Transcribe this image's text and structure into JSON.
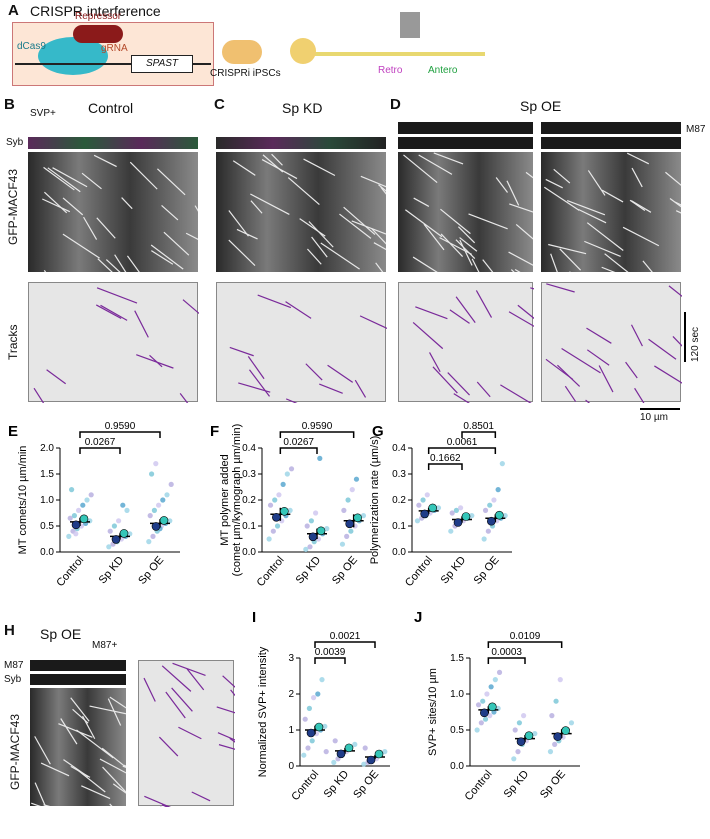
{
  "panelA": {
    "label": "A",
    "title": "CRISPR interference",
    "dcas9": "dCas9",
    "repressor": "Repressor",
    "grna": "gRNA",
    "gene": "SPAST",
    "ipsc": "CRISPRi iPSCs",
    "retro": "Retro",
    "antero": "Antero"
  },
  "kymo": {
    "labelB": "B",
    "labelC": "C",
    "labelD": "D",
    "control": "Control",
    "spkd": "Sp KD",
    "spoe": "Sp OE",
    "svp": "SVP+",
    "syb": "Syb",
    "gfp": "GFP-MACF43",
    "tracks": "Tracks",
    "m87": "M87",
    "scale_time": "120 sec",
    "scale_space": "10 µm"
  },
  "panelH": {
    "label": "H",
    "title": "Sp OE",
    "m87plus": "M87+",
    "m87": "M87",
    "syb": "Syb",
    "gfp": "GFP-MACF43"
  },
  "chart_data": [
    {
      "panel": "E",
      "type": "scatter",
      "ylabel": "MT comets/10 µm/min",
      "categories": [
        "Control",
        "Sp KD",
        "Sp OE"
      ],
      "ylim": [
        0,
        2.0
      ],
      "yticks": [
        "0.0",
        "0.5",
        "1.0",
        "1.5",
        "2.0"
      ],
      "means": [
        0.58,
        0.3,
        0.55
      ],
      "sem": [
        0.08,
        0.06,
        0.08
      ],
      "points": [
        [
          0.3,
          0.4,
          0.45,
          0.5,
          0.55,
          0.6,
          0.65,
          0.7,
          0.8,
          0.9,
          1.0,
          1.1,
          1.2,
          0.35
        ],
        [
          0.1,
          0.15,
          0.2,
          0.25,
          0.3,
          0.35,
          0.4,
          0.5,
          0.6,
          0.9,
          0.8
        ],
        [
          0.2,
          0.3,
          0.4,
          0.5,
          0.55,
          0.6,
          0.7,
          0.8,
          0.9,
          1.0,
          1.1,
          1.3,
          1.5,
          1.7,
          0.45
        ]
      ],
      "comparisons": [
        {
          "from": 0,
          "to": 1,
          "p": "0.0267"
        },
        {
          "from": 0,
          "to": 2,
          "p": "0.9590"
        }
      ]
    },
    {
      "panel": "F",
      "type": "scatter",
      "ylabel": "MT polymer added\n(comet µm/kymograph µm/min)",
      "categories": [
        "Control",
        "Sp KD",
        "Sp OE"
      ],
      "ylim": [
        0,
        0.4
      ],
      "yticks": [
        "0.0",
        "0.1",
        "0.2",
        "0.3",
        "0.4"
      ],
      "means": [
        0.145,
        0.07,
        0.12
      ],
      "sem": [
        0.025,
        0.02,
        0.025
      ],
      "points": [
        [
          0.05,
          0.08,
          0.1,
          0.12,
          0.14,
          0.16,
          0.18,
          0.2,
          0.22,
          0.26,
          0.3,
          0.32
        ],
        [
          0.01,
          0.02,
          0.04,
          0.05,
          0.07,
          0.09,
          0.1,
          0.12,
          0.15,
          0.36
        ],
        [
          0.03,
          0.06,
          0.08,
          0.1,
          0.12,
          0.14,
          0.16,
          0.2,
          0.24,
          0.28
        ]
      ],
      "comparisons": [
        {
          "from": 0,
          "to": 1,
          "p": "0.0267"
        },
        {
          "from": 0,
          "to": 2,
          "p": "0.9590"
        }
      ]
    },
    {
      "panel": "G",
      "type": "scatter",
      "ylabel": "Polymerization rate (µm/s)",
      "categories": [
        "Control",
        "Sp KD",
        "Sp OE"
      ],
      "ylim": [
        0,
        0.4
      ],
      "yticks": [
        "0.0",
        "0.1",
        "0.2",
        "0.3",
        "0.4"
      ],
      "means": [
        0.158,
        0.125,
        0.13
      ],
      "sem": [
        0.012,
        0.012,
        0.015
      ],
      "points": [
        [
          0.12,
          0.13,
          0.14,
          0.15,
          0.16,
          0.17,
          0.18,
          0.2,
          0.22
        ],
        [
          0.08,
          0.1,
          0.11,
          0.12,
          0.13,
          0.14,
          0.15,
          0.16,
          0.17
        ],
        [
          0.05,
          0.08,
          0.1,
          0.12,
          0.13,
          0.14,
          0.16,
          0.18,
          0.2,
          0.24,
          0.34
        ]
      ],
      "comparisons": [
        {
          "from": 0,
          "to": 1,
          "p": "0.1662"
        },
        {
          "from": 0,
          "to": 2,
          "p": "0.0061"
        },
        {
          "from": 1,
          "to": 2,
          "p": "0.8501"
        }
      ]
    },
    {
      "panel": "I",
      "type": "scatter",
      "ylabel": "Normalized SVP+ intensity",
      "categories": [
        "Control",
        "Sp KD",
        "Sp OE"
      ],
      "ylim": [
        0,
        3
      ],
      "yticks": [
        "0",
        "1",
        "2",
        "3"
      ],
      "means": [
        1.0,
        0.42,
        0.25
      ],
      "sem": [
        0.12,
        0.08,
        0.06
      ],
      "points": [
        [
          0.3,
          0.5,
          0.7,
          0.9,
          1.0,
          1.1,
          1.3,
          1.6,
          1.9,
          2.0,
          2.4,
          0.4
        ],
        [
          0.1,
          0.2,
          0.3,
          0.4,
          0.5,
          0.6,
          0.7,
          0.3
        ],
        [
          0.05,
          0.1,
          0.15,
          0.2,
          0.3,
          0.4,
          0.5
        ]
      ],
      "comparisons": [
        {
          "from": 0,
          "to": 1,
          "p": "0.0039"
        },
        {
          "from": 0,
          "to": 2,
          "p": "0.0021"
        }
      ]
    },
    {
      "panel": "J",
      "type": "scatter",
      "ylabel": "SVP+ sites/10 µm",
      "categories": [
        "Control",
        "Sp KD",
        "Sp OE"
      ],
      "ylim": [
        0,
        1.5
      ],
      "yticks": [
        "0.0",
        "0.5",
        "1.0",
        "1.5"
      ],
      "means": [
        0.78,
        0.38,
        0.45
      ],
      "sem": [
        0.05,
        0.05,
        0.06
      ],
      "points": [
        [
          0.5,
          0.6,
          0.65,
          0.7,
          0.75,
          0.8,
          0.85,
          0.9,
          1.0,
          1.1,
          1.2,
          1.3
        ],
        [
          0.1,
          0.2,
          0.3,
          0.35,
          0.4,
          0.45,
          0.5,
          0.6,
          0.7
        ],
        [
          0.2,
          0.3,
          0.35,
          0.4,
          0.5,
          0.6,
          0.7,
          0.9,
          1.2
        ]
      ],
      "comparisons": [
        {
          "from": 0,
          "to": 1,
          "p": "0.0003"
        },
        {
          "from": 0,
          "to": 2,
          "p": "0.0109"
        }
      ]
    }
  ]
}
